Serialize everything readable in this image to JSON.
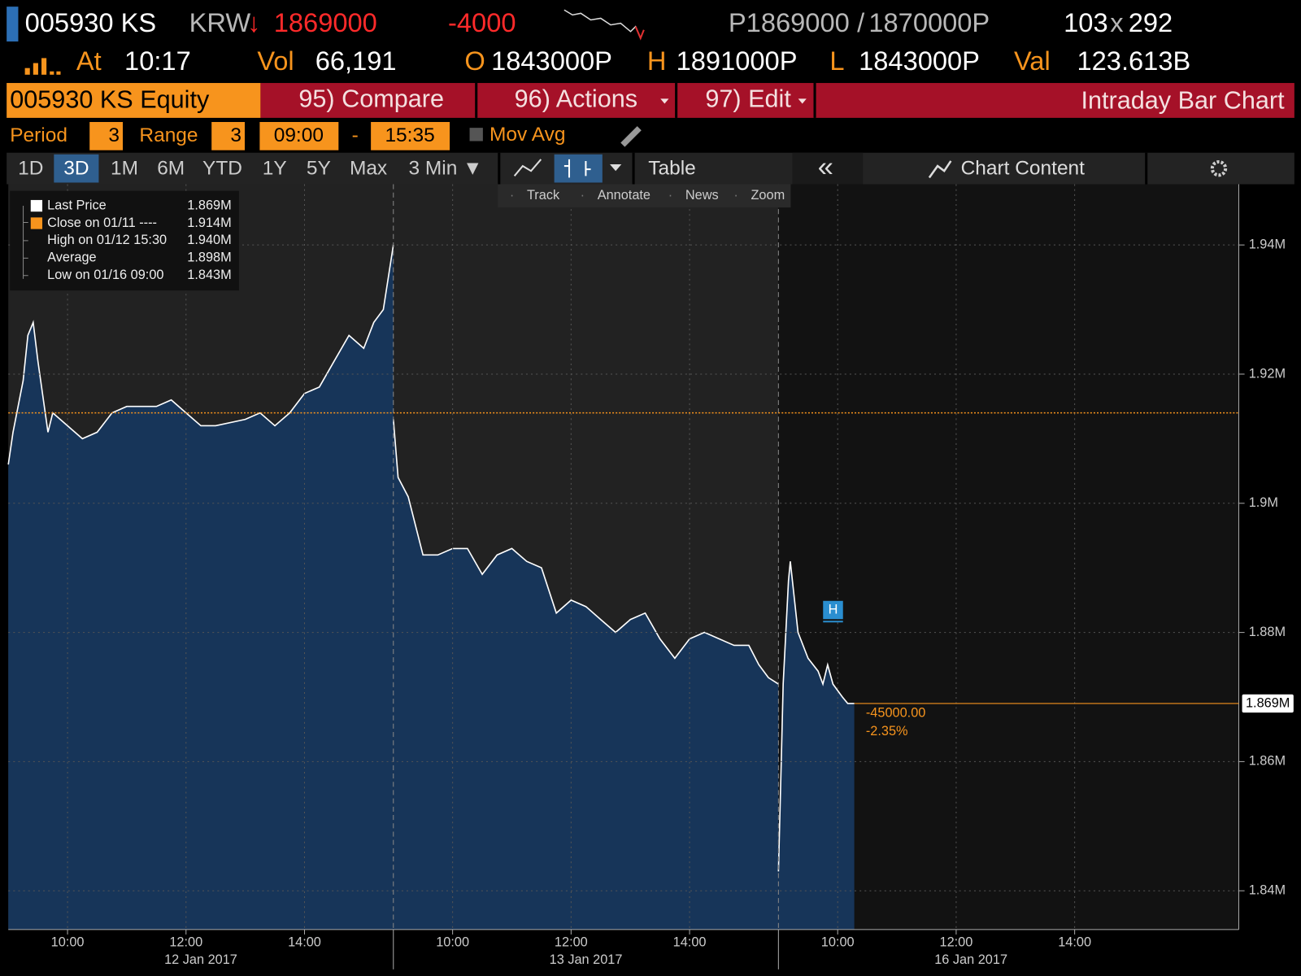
{
  "quote": {
    "ticker": "005930 KS",
    "currency": "KRW",
    "arrow": "↓",
    "last": "1869000",
    "change": "-4000",
    "bid": "P1869000",
    "slash": "/",
    "ask": "1870000P",
    "bid_size": "103",
    "x": "x",
    "ask_size": "292"
  },
  "stats": {
    "at_label": "At",
    "time": "10:17",
    "vol_label": "Vol",
    "vol": "66,191",
    "open_label": "O",
    "open": "1843000P",
    "high_label": "H",
    "high": "1891000P",
    "low_label": "L",
    "low": "1843000P",
    "val_label": "Val",
    "val": "123.613B"
  },
  "menu": {
    "security": "005930 KS Equity",
    "items": [
      "95) Compare",
      "96) Actions",
      "97) Edit"
    ],
    "title": "Intraday Bar Chart"
  },
  "settings": {
    "period_label": "Period",
    "period": "3",
    "range_label": "Range",
    "range": "3",
    "start": "09:00",
    "dash": "-",
    "end": "15:35",
    "mov_avg": "Mov Avg"
  },
  "tabs": {
    "items": [
      "1D",
      "3D",
      "1M",
      "6M",
      "YTD",
      "1Y",
      "5Y",
      "Max",
      "3 Min ▼"
    ],
    "selected": 1,
    "table": "Table",
    "collapse": "«",
    "chart_content": "Chart Content"
  },
  "tools": [
    "Track",
    "Annotate",
    "News",
    "Zoom"
  ],
  "chart_data": {
    "type": "line",
    "color": "#ffffff",
    "fill": "#173559",
    "legend": [
      {
        "name": "Last Price",
        "value": "1.869M",
        "color": "#ffffff"
      },
      {
        "name": "Close on 01/11 ----",
        "value": "1.914M",
        "color": "#f7941d"
      },
      {
        "name": "High on 01/12 15:30",
        "value": "1.940M"
      },
      {
        "name": "Average",
        "value": "1.898M"
      },
      {
        "name": "Low on 01/16 09:00",
        "value": "1.843M"
      }
    ],
    "ylim": [
      1834000,
      1949400
    ],
    "yticks": [
      {
        "value": 1840000,
        "label": "1.84M"
      },
      {
        "value": 1860000,
        "label": "1.86M"
      },
      {
        "value": 1880000,
        "label": "1.88M"
      },
      {
        "value": 1900000,
        "label": "1.9M"
      },
      {
        "value": 1920000,
        "label": "1.92M"
      },
      {
        "value": 1940000,
        "label": "1.94M"
      }
    ],
    "grid": true,
    "days": [
      {
        "label": "12 Jan 2017",
        "xlim": [
          9,
          15.5
        ],
        "xticks": [
          {
            "value": 10,
            "label": "10:00"
          },
          {
            "value": 12,
            "label": "12:00"
          },
          {
            "value": 14,
            "label": "14:00"
          }
        ],
        "x": [
          9,
          9.08,
          9.25,
          9.33,
          9.42,
          9.5,
          9.67,
          9.75,
          10,
          10.25,
          10.5,
          10.75,
          11,
          11.5,
          11.75,
          12,
          12.25,
          12.5,
          13,
          13.25,
          13.5,
          13.75,
          14,
          14.25,
          14.5,
          14.75,
          15,
          15.17,
          15.33,
          15.5
        ],
        "values": [
          1906000,
          1911000,
          1919000,
          1926000,
          1928000,
          1922000,
          1911000,
          1914000,
          1912000,
          1910000,
          1911000,
          1914000,
          1915000,
          1915000,
          1916000,
          1914000,
          1912000,
          1912000,
          1913000,
          1914000,
          1912000,
          1914000,
          1917000,
          1918000,
          1922000,
          1926000,
          1924000,
          1928000,
          1930000,
          1940000
        ]
      },
      {
        "label": "13 Jan 2017",
        "xlim": [
          9,
          15.5
        ],
        "xticks": [
          {
            "value": 10,
            "label": "10:00"
          },
          {
            "value": 12,
            "label": "12:00"
          },
          {
            "value": 14,
            "label": "14:00"
          }
        ],
        "x": [
          9,
          9.08,
          9.25,
          9.5,
          9.75,
          10,
          10.25,
          10.5,
          10.75,
          11,
          11.25,
          11.5,
          11.75,
          12,
          12.25,
          12.5,
          12.75,
          13,
          13.25,
          13.5,
          13.75,
          14,
          14.25,
          14.5,
          14.75,
          15,
          15.17,
          15.33,
          15.5
        ],
        "values": [
          1913000,
          1904000,
          1901000,
          1892000,
          1892000,
          1893000,
          1893000,
          1889000,
          1892000,
          1893000,
          1891000,
          1890000,
          1883000,
          1885000,
          1884000,
          1882000,
          1880000,
          1882000,
          1883000,
          1879000,
          1876000,
          1879000,
          1880000,
          1879000,
          1878000,
          1878000,
          1875000,
          1873000,
          1872000
        ]
      },
      {
        "label": "16 Jan 2017",
        "xlim": [
          9,
          16.77
        ],
        "xticks": [
          {
            "value": 10,
            "label": "10:00"
          },
          {
            "value": 12,
            "label": "12:00"
          },
          {
            "value": 14,
            "label": "14:00"
          }
        ],
        "x": [
          9,
          9.05,
          9.08,
          9.17,
          9.2,
          9.33,
          9.5,
          9.67,
          9.75,
          9.83,
          9.92,
          10.08,
          10.17,
          10.28
        ],
        "values": [
          1843000,
          1861000,
          1872000,
          1888000,
          1891000,
          1880000,
          1876000,
          1874000,
          1872000,
          1875000,
          1872000,
          1870000,
          1869000,
          1869000
        ]
      }
    ],
    "close_line": {
      "value": 1914000,
      "color": "#f7941d"
    },
    "last_line": {
      "value": 1869000,
      "label": "1.869M",
      "color": "#f7941d"
    },
    "change_labels": [
      "-45000.00",
      "-2.35%"
    ],
    "marker": "H"
  }
}
